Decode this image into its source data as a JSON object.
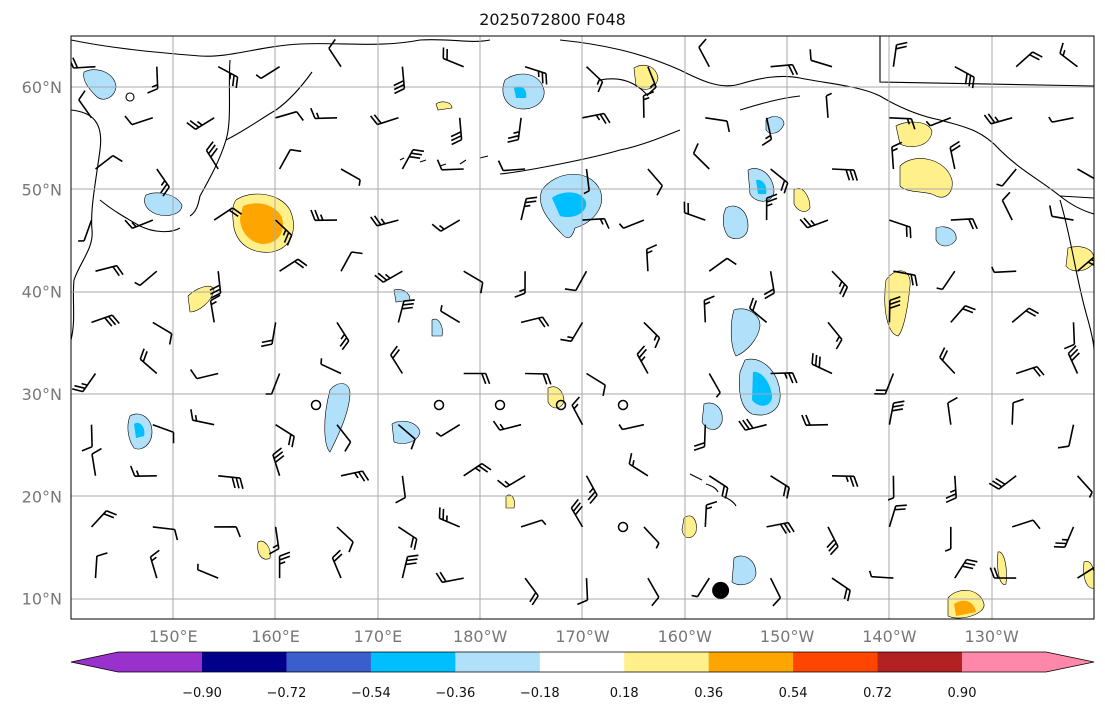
{
  "title": "2025072800 F048",
  "map": {
    "lat_labels": [
      {
        "lat": 60,
        "label": "60°N"
      },
      {
        "lat": 50,
        "label": "50°N"
      },
      {
        "lat": 40,
        "label": "40°N"
      },
      {
        "lat": 30,
        "label": "30°N"
      },
      {
        "lat": 20,
        "label": "20°N"
      },
      {
        "lat": 10,
        "label": "10°N"
      }
    ],
    "lon_labels": [
      {
        "lon": 150,
        "label": "150°E"
      },
      {
        "lon": 160,
        "label": "160°E"
      },
      {
        "lon": 170,
        "label": "170°E"
      },
      {
        "lon": 180,
        "label": "180°W"
      },
      {
        "lon": 190,
        "label": "170°W"
      },
      {
        "lon": 200,
        "label": "160°W"
      },
      {
        "lon": 210,
        "label": "150°W"
      },
      {
        "lon": 220,
        "label": "140°W"
      },
      {
        "lon": 230,
        "label": "130°W"
      }
    ],
    "lon_range": [
      140,
      240
    ],
    "lat_range": [
      8,
      65
    ],
    "grid": true,
    "colors": {
      "land_outline": "#000000",
      "grid": "#aaaaaa"
    }
  },
  "colorbar": {
    "ticks": [
      "−0.90",
      "−0.72",
      "−0.54",
      "−0.36",
      "−0.18",
      "0.18",
      "0.36",
      "0.54",
      "0.72",
      "0.90"
    ],
    "colors": [
      "#9932cc",
      "#00008b",
      "#3a5fcd",
      "#00bfff",
      "#b0e0fa",
      "#ffffff",
      "#fff08c",
      "#ffa500",
      "#ff4500",
      "#b22222",
      "#ff88aa"
    ]
  },
  "markers": {
    "storm_center": {
      "lon": 203.5,
      "lat": 10.8
    }
  }
}
